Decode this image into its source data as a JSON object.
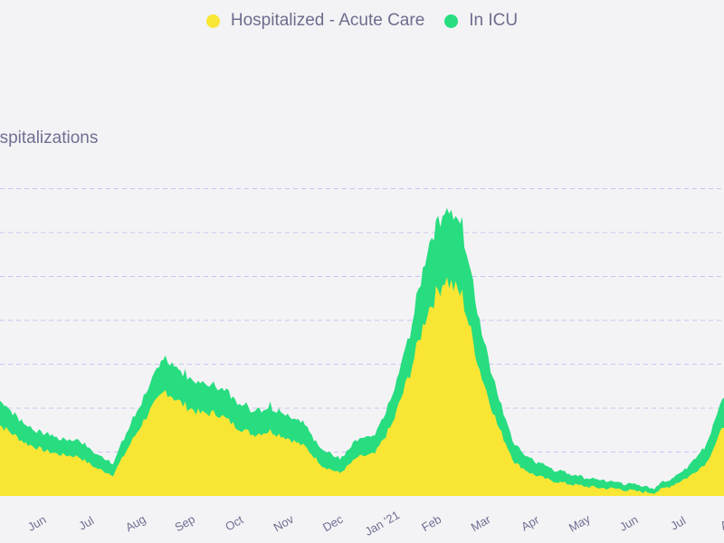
{
  "legend": [
    {
      "label": "Hospitalized - Acute Care",
      "color": "#f9e634"
    },
    {
      "label": "In ICU",
      "color": "#27dd80"
    }
  ],
  "chart_data": {
    "type": "area",
    "stacked": true,
    "title": "Hospitalizations",
    "visible_title": "ospitalizations",
    "x_ticks": [
      "Jun",
      "Jul",
      "Aug",
      "Sep",
      "Oct",
      "Nov",
      "Dec",
      "Jan '21",
      "Feb",
      "Mar",
      "Apr",
      "May",
      "Jun",
      "Jul",
      "Au"
    ],
    "ylim": [
      0,
      2000
    ],
    "gridline_values": [
      250,
      500,
      750,
      1000,
      1250,
      1500,
      1750
    ],
    "grid": true,
    "series": [
      {
        "name": "Hospitalized - Acute Care",
        "color": "#f9e634",
        "values": [
          440,
          370,
          300,
          260,
          235,
          225,
          160,
          120,
          300,
          470,
          600,
          520,
          470,
          470,
          400,
          350,
          370,
          330,
          280,
          170,
          130,
          220,
          240,
          410,
          700,
          1050,
          1240,
          1140,
          720,
          410,
          190,
          125,
          90,
          70,
          55,
          45,
          40,
          25,
          20,
          60,
          110,
          190,
          400
        ]
      },
      {
        "name": "In ICU",
        "color": "#27dd80",
        "values": [
          140,
          130,
          105,
          100,
          95,
          95,
          80,
          70,
          110,
          150,
          190,
          175,
          165,
          165,
          150,
          140,
          145,
          140,
          120,
          95,
          80,
          100,
          100,
          150,
          230,
          380,
          430,
          380,
          290,
          170,
          100,
          80,
          70,
          60,
          50,
          45,
          40,
          35,
          30,
          40,
          60,
          110,
          180
        ]
      }
    ]
  }
}
